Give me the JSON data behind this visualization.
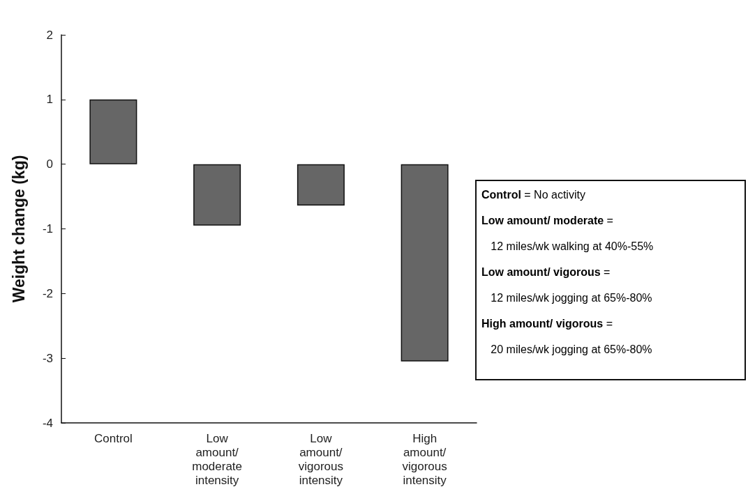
{
  "chart_data": {
    "type": "bar",
    "ylabel": "Weight change (kg)",
    "categories": [
      "Control",
      "Low\namount/\nmoderate\nintensity",
      "Low\namount/\nvigorous\nintensity",
      "High\namount/\nvigorous\nintensity"
    ],
    "values": [
      1.0,
      -0.95,
      -0.64,
      -3.05
    ],
    "color": "#666666",
    "ylim": [
      -4,
      2
    ],
    "yticks": [
      -4,
      -3,
      -2,
      -1,
      0,
      1,
      2
    ],
    "grid": false,
    "annotations": [
      "Control = No activity",
      "Low amount/ moderate =",
      "12 miles/wk walking at 40%-55%",
      "Low amount/ vigorous =",
      "12 miles/wk jogging at 65%-80%",
      "High amount/ vigorous =",
      "20 miles/wk jogging at 65%-80%"
    ]
  }
}
